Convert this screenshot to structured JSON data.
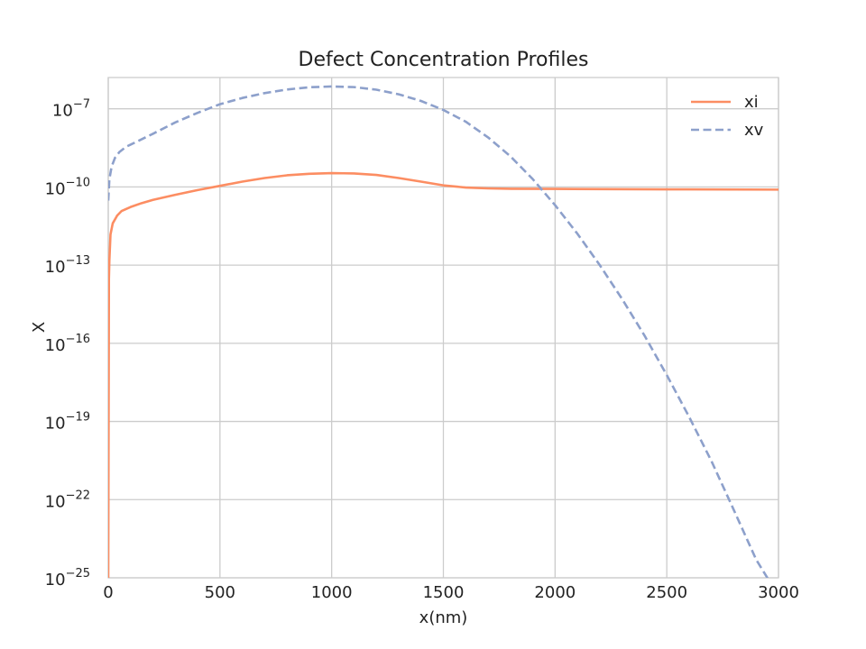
{
  "chart_data": {
    "type": "line",
    "title": "Defect Concentration Profiles",
    "xlabel": "x(nm)",
    "ylabel": "X",
    "xlim": [
      0,
      3000
    ],
    "ylim": [
      1e-25,
      1e-05
    ],
    "yscale": "log",
    "grid": true,
    "legend_position": "top-right",
    "x_ticks": [
      "0",
      "500",
      "1000",
      "1500",
      "2000",
      "2500",
      "3000"
    ],
    "y_ticks": [
      {
        "base": "10",
        "exp": "−25"
      },
      {
        "base": "10",
        "exp": "−22"
      },
      {
        "base": "10",
        "exp": "−19"
      },
      {
        "base": "10",
        "exp": "−16"
      },
      {
        "base": "10",
        "exp": "−13"
      },
      {
        "base": "10",
        "exp": "−10"
      },
      {
        "base": "10",
        "exp": "−7"
      }
    ],
    "series": [
      {
        "name": "xi",
        "color": "#fc8d62",
        "dash": "solid",
        "x": [
          0,
          3,
          5,
          10,
          20,
          40,
          60,
          100,
          150,
          200,
          300,
          400,
          500,
          600,
          700,
          800,
          900,
          1000,
          1100,
          1200,
          1300,
          1400,
          1500,
          1600,
          1700,
          1800,
          2000,
          2500,
          3000
        ],
        "y": [
          1e-25,
          3e-14,
          1.5e-13,
          1.5e-12,
          4e-12,
          8e-12,
          1.2e-11,
          1.7e-11,
          2.4e-11,
          3.2e-11,
          5e-11,
          7.6e-11,
          1.1e-10,
          1.6e-10,
          2.2e-10,
          2.8e-10,
          3.2e-10,
          3.4e-10,
          3.3e-10,
          2.9e-10,
          2.2e-10,
          1.6e-10,
          1.15e-10,
          9.5e-11,
          8.8e-11,
          8.5e-11,
          8.4e-11,
          8.1e-11,
          7.9e-11
        ]
      },
      {
        "name": "xv",
        "color": "#8da0cb",
        "dash": "dashed",
        "x": [
          0,
          5,
          15,
          30,
          50,
          80,
          100,
          200,
          300,
          400,
          500,
          600,
          700,
          800,
          900,
          1000,
          1100,
          1200,
          1300,
          1400,
          1500,
          1600,
          1700,
          1800,
          1900,
          2000,
          2100,
          2200,
          2300,
          2400,
          2500,
          2600,
          2700,
          2800,
          2900,
          3000
        ],
        "y": [
          3e-11,
          2e-10,
          6e-10,
          1.3e-09,
          2.2e-09,
          3.5e-09,
          4.2e-09,
          1.1e-08,
          3e-08,
          7e-08,
          1.5e-07,
          2.6e-07,
          4e-07,
          5.5e-07,
          6.7e-07,
          7.2e-07,
          6.8e-07,
          5.4e-07,
          3.6e-07,
          2e-07,
          9e-08,
          3.2e-08,
          8e-09,
          1.5e-09,
          2e-10,
          2e-11,
          1.6e-12,
          1e-13,
          5e-15,
          2e-16,
          6e-18,
          1.5e-19,
          3e-21,
          4e-23,
          5e-25,
          2e-26
        ]
      }
    ]
  }
}
